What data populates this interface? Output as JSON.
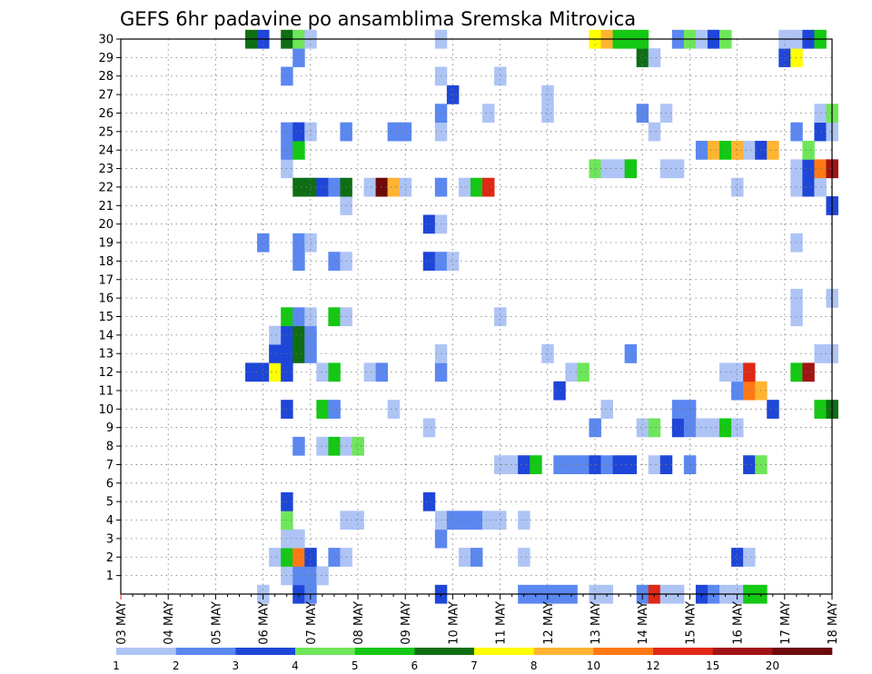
{
  "chart_data": {
    "type": "heatmap",
    "title": "GEFS 6hr padavine po ansamblima Sremska Mitrovica",
    "xlabel": "",
    "ylabel": "",
    "x_tick_labels": [
      "03 MAY",
      "04 MAY",
      "05 MAY",
      "06 MAY",
      "07 MAY",
      "08 MAY",
      "09 MAY",
      "10 MAY",
      "11 MAY",
      "12 MAY",
      "13 MAY",
      "14 MAY",
      "15 MAY",
      "16 MAY",
      "17 MAY",
      "18 MAY"
    ],
    "y_tick_labels": [
      "1",
      "2",
      "3",
      "4",
      "5",
      "6",
      "7",
      "8",
      "9",
      "10",
      "11",
      "12",
      "13",
      "14",
      "15",
      "16",
      "17",
      "18",
      "19",
      "20",
      "21",
      "22",
      "23",
      "24",
      "25",
      "26",
      "27",
      "28",
      "29",
      "30"
    ],
    "x_unit": "6-hour step from 03 MAY 00Z",
    "x_range": [
      0,
      60
    ],
    "y_range": [
      0,
      30
    ],
    "grid": true,
    "legend_placement": "bottom",
    "colorbar": {
      "labels": [
        "1",
        "2",
        "3",
        "4",
        "5",
        "6",
        "7",
        "8",
        "10",
        "12",
        "15",
        "20"
      ],
      "colors": [
        "#aec4f5",
        "#5b87f0",
        "#1e46d8",
        "#6ee65a",
        "#14c814",
        "#0f6e14",
        "#ffff00",
        "#ffb432",
        "#ff7814",
        "#e02814",
        "#a01414",
        "#6e0a0a"
      ]
    },
    "cells": [
      [
        12,
        0,
        1
      ],
      [
        15,
        0,
        3
      ],
      [
        16,
        0,
        2
      ],
      [
        27,
        0,
        3
      ],
      [
        34,
        0,
        2
      ],
      [
        35,
        0,
        2
      ],
      [
        36,
        0,
        2
      ],
      [
        37,
        0,
        2
      ],
      [
        38,
        0,
        2
      ],
      [
        40,
        0,
        1
      ],
      [
        41,
        0,
        1
      ],
      [
        44,
        0,
        2
      ],
      [
        45,
        0,
        10
      ],
      [
        46,
        0,
        1
      ],
      [
        47,
        0,
        1
      ],
      [
        49,
        0,
        3
      ],
      [
        50,
        0,
        2
      ],
      [
        51,
        0,
        1
      ],
      [
        52,
        0,
        1
      ],
      [
        53,
        0,
        5
      ],
      [
        54,
        0,
        5
      ],
      [
        14,
        1,
        1
      ],
      [
        15,
        1,
        2
      ],
      [
        16,
        1,
        2
      ],
      [
        17,
        1,
        1
      ],
      [
        13,
        2,
        1
      ],
      [
        14,
        2,
        5
      ],
      [
        15,
        2,
        9
      ],
      [
        16,
        2,
        3
      ],
      [
        18,
        2,
        2
      ],
      [
        19,
        2,
        1
      ],
      [
        29,
        2,
        1
      ],
      [
        30,
        2,
        2
      ],
      [
        34,
        2,
        1
      ],
      [
        52,
        2,
        3
      ],
      [
        53,
        2,
        1
      ],
      [
        14,
        3,
        1
      ],
      [
        15,
        3,
        1
      ],
      [
        27,
        3,
        2
      ],
      [
        14,
        4,
        4
      ],
      [
        19,
        4,
        1
      ],
      [
        20,
        4,
        1
      ],
      [
        27,
        4,
        1
      ],
      [
        28,
        4,
        2
      ],
      [
        29,
        4,
        2
      ],
      [
        30,
        4,
        2
      ],
      [
        31,
        4,
        1
      ],
      [
        32,
        4,
        1
      ],
      [
        34,
        4,
        1
      ],
      [
        14,
        5,
        3
      ],
      [
        26,
        5,
        3
      ],
      [
        32,
        7,
        1
      ],
      [
        33,
        7,
        1
      ],
      [
        34,
        7,
        3
      ],
      [
        35,
        7,
        5
      ],
      [
        37,
        7,
        2
      ],
      [
        38,
        7,
        2
      ],
      [
        39,
        7,
        2
      ],
      [
        40,
        7,
        3
      ],
      [
        41,
        7,
        2
      ],
      [
        42,
        7,
        3
      ],
      [
        43,
        7,
        3
      ],
      [
        45,
        7,
        1
      ],
      [
        46,
        7,
        3
      ],
      [
        48,
        7,
        2
      ],
      [
        53,
        7,
        3
      ],
      [
        54,
        7,
        4
      ],
      [
        15,
        8,
        2
      ],
      [
        17,
        8,
        1
      ],
      [
        18,
        8,
        5
      ],
      [
        19,
        8,
        1
      ],
      [
        20,
        8,
        4
      ],
      [
        26,
        9,
        1
      ],
      [
        40,
        9,
        2
      ],
      [
        44,
        9,
        1
      ],
      [
        45,
        9,
        4
      ],
      [
        47,
        9,
        3
      ],
      [
        48,
        9,
        2
      ],
      [
        49,
        9,
        1
      ],
      [
        50,
        9,
        1
      ],
      [
        51,
        9,
        5
      ],
      [
        52,
        9,
        1
      ],
      [
        14,
        10,
        3
      ],
      [
        17,
        10,
        5
      ],
      [
        18,
        10,
        2
      ],
      [
        23,
        10,
        1
      ],
      [
        41,
        10,
        1
      ],
      [
        47,
        10,
        2
      ],
      [
        48,
        10,
        2
      ],
      [
        55,
        10,
        3
      ],
      [
        59,
        10,
        5
      ],
      [
        60,
        10,
        6
      ],
      [
        37,
        11,
        3
      ],
      [
        52,
        11,
        2
      ],
      [
        53,
        11,
        9
      ],
      [
        54,
        11,
        8
      ],
      [
        11,
        12,
        3
      ],
      [
        12,
        12,
        3
      ],
      [
        13,
        12,
        7
      ],
      [
        14,
        12,
        3
      ],
      [
        17,
        12,
        1
      ],
      [
        18,
        12,
        5
      ],
      [
        21,
        12,
        1
      ],
      [
        22,
        12,
        2
      ],
      [
        27,
        12,
        2
      ],
      [
        38,
        12,
        1
      ],
      [
        39,
        12,
        4
      ],
      [
        51,
        12,
        1
      ],
      [
        52,
        12,
        1
      ],
      [
        53,
        12,
        10
      ],
      [
        57,
        12,
        5
      ],
      [
        58,
        12,
        11
      ],
      [
        13,
        13,
        3
      ],
      [
        14,
        13,
        3
      ],
      [
        15,
        13,
        6
      ],
      [
        16,
        13,
        2
      ],
      [
        27,
        13,
        1
      ],
      [
        36,
        13,
        1
      ],
      [
        43,
        13,
        2
      ],
      [
        59,
        13,
        1
      ],
      [
        60,
        13,
        1
      ],
      [
        13,
        14,
        1
      ],
      [
        14,
        14,
        3
      ],
      [
        15,
        14,
        6
      ],
      [
        16,
        14,
        2
      ],
      [
        14,
        15,
        5
      ],
      [
        15,
        15,
        2
      ],
      [
        16,
        15,
        1
      ],
      [
        18,
        15,
        5
      ],
      [
        19,
        15,
        1
      ],
      [
        32,
        15,
        1
      ],
      [
        57,
        15,
        1
      ],
      [
        57,
        16,
        1
      ],
      [
        60,
        16,
        1
      ],
      [
        15,
        18,
        2
      ],
      [
        18,
        18,
        2
      ],
      [
        19,
        18,
        1
      ],
      [
        26,
        18,
        3
      ],
      [
        27,
        18,
        2
      ],
      [
        28,
        18,
        1
      ],
      [
        12,
        19,
        2
      ],
      [
        15,
        19,
        2
      ],
      [
        16,
        19,
        1
      ],
      [
        57,
        19,
        1
      ],
      [
        26,
        20,
        3
      ],
      [
        27,
        20,
        1
      ],
      [
        19,
        21,
        1
      ],
      [
        60,
        21,
        3
      ],
      [
        15,
        22,
        6
      ],
      [
        16,
        22,
        6
      ],
      [
        17,
        22,
        3
      ],
      [
        18,
        22,
        2
      ],
      [
        19,
        22,
        6
      ],
      [
        21,
        22,
        1
      ],
      [
        22,
        22,
        12
      ],
      [
        23,
        22,
        8
      ],
      [
        24,
        22,
        1
      ],
      [
        27,
        22,
        2
      ],
      [
        29,
        22,
        1
      ],
      [
        30,
        22,
        5
      ],
      [
        31,
        22,
        10
      ],
      [
        52,
        22,
        1
      ],
      [
        57,
        22,
        1
      ],
      [
        58,
        22,
        3
      ],
      [
        59,
        22,
        1
      ],
      [
        14,
        23,
        1
      ],
      [
        40,
        23,
        4
      ],
      [
        41,
        23,
        1
      ],
      [
        42,
        23,
        1
      ],
      [
        43,
        23,
        5
      ],
      [
        46,
        23,
        1
      ],
      [
        47,
        23,
        1
      ],
      [
        57,
        23,
        1
      ],
      [
        58,
        23,
        3
      ],
      [
        59,
        23,
        9
      ],
      [
        60,
        23,
        11
      ],
      [
        14,
        24,
        2
      ],
      [
        15,
        24,
        5
      ],
      [
        49,
        24,
        2
      ],
      [
        50,
        24,
        8
      ],
      [
        51,
        24,
        5
      ],
      [
        52,
        24,
        8
      ],
      [
        53,
        24,
        1
      ],
      [
        54,
        24,
        3
      ],
      [
        55,
        24,
        8
      ],
      [
        58,
        24,
        4
      ],
      [
        14,
        25,
        2
      ],
      [
        15,
        25,
        3
      ],
      [
        16,
        25,
        1
      ],
      [
        19,
        25,
        2
      ],
      [
        23,
        25,
        2
      ],
      [
        24,
        25,
        2
      ],
      [
        27,
        25,
        1
      ],
      [
        45,
        25,
        1
      ],
      [
        57,
        25,
        2
      ],
      [
        59,
        25,
        3
      ],
      [
        60,
        25,
        1
      ],
      [
        27,
        26,
        2
      ],
      [
        31,
        26,
        1
      ],
      [
        36,
        26,
        1
      ],
      [
        44,
        26,
        2
      ],
      [
        46,
        26,
        1
      ],
      [
        59,
        26,
        1
      ],
      [
        60,
        26,
        4
      ],
      [
        28,
        27,
        3
      ],
      [
        36,
        27,
        1
      ],
      [
        14,
        28,
        2
      ],
      [
        27,
        28,
        1
      ],
      [
        32,
        28,
        1
      ],
      [
        15,
        29,
        2
      ],
      [
        44,
        29,
        6
      ],
      [
        45,
        29,
        1
      ],
      [
        56,
        29,
        3
      ],
      [
        57,
        29,
        7
      ],
      [
        11,
        30,
        6
      ],
      [
        12,
        30,
        3
      ],
      [
        14,
        30,
        6
      ],
      [
        15,
        30,
        4
      ],
      [
        16,
        30,
        1
      ],
      [
        27,
        30,
        1
      ],
      [
        40,
        30,
        7
      ],
      [
        41,
        30,
        8
      ],
      [
        42,
        30,
        5
      ],
      [
        43,
        30,
        5
      ],
      [
        44,
        30,
        5
      ],
      [
        47,
        30,
        2
      ],
      [
        48,
        30,
        4
      ],
      [
        49,
        30,
        1
      ],
      [
        50,
        30,
        3
      ],
      [
        51,
        30,
        4
      ],
      [
        56,
        30,
        1
      ],
      [
        57,
        30,
        1
      ],
      [
        58,
        30,
        3
      ],
      [
        59,
        30,
        5
      ]
    ]
  }
}
